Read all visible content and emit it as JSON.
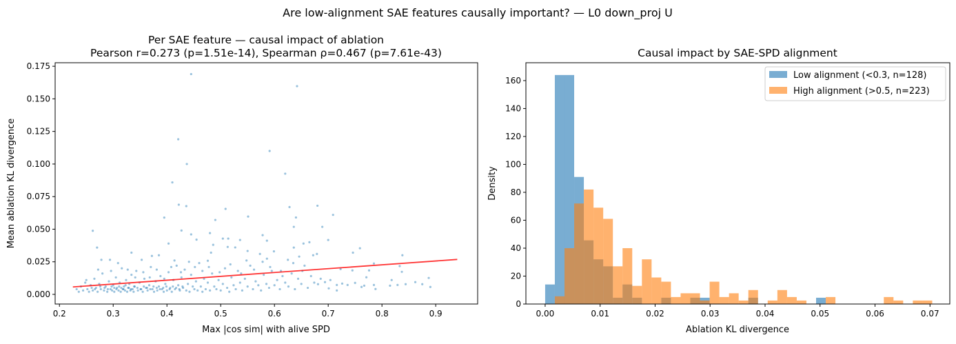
{
  "suptitle": "Are low-alignment SAE features causally important? — L0 down_proj U",
  "chart_data": [
    {
      "type": "scatter",
      "title_line1": "Per SAE feature — causal impact of ablation",
      "title_line2": "Pearson r=0.273 (p=1.51e-14), Spearman ρ=0.467 (p=7.61e-43)",
      "xlabel": "Max |cos sim| with alive SPD",
      "ylabel": "Mean ablation KL divergence",
      "xlim": [
        0.192,
        0.978
      ],
      "ylim": [
        -0.0074,
        0.1777
      ],
      "xticks": [
        "0.2",
        "0.3",
        "0.4",
        "0.5",
        "0.6",
        "0.7",
        "0.8",
        "0.9"
      ],
      "yticks": [
        "0.000",
        "0.025",
        "0.050",
        "0.075",
        "0.100",
        "0.125",
        "0.150",
        "0.175"
      ],
      "point_color": "#1f77b4",
      "fit_line": {
        "color": "#ff0000",
        "x": [
          0.225,
          0.94
        ],
        "y": [
          0.0057,
          0.0268
        ]
      },
      "points": [
        [
          0.445,
          0.169
        ],
        [
          0.642,
          0.1597
        ],
        [
          0.421,
          0.119
        ],
        [
          0.591,
          0.11
        ],
        [
          0.437,
          0.1
        ],
        [
          0.62,
          0.0926
        ],
        [
          0.41,
          0.0859
        ],
        [
          0.422,
          0.0688
        ],
        [
          0.436,
          0.0677
        ],
        [
          0.509,
          0.0656
        ],
        [
          0.628,
          0.067
        ],
        [
          0.68,
          0.068
        ],
        [
          0.709,
          0.061
        ],
        [
          0.64,
          0.059
        ],
        [
          0.395,
          0.0589
        ],
        [
          0.551,
          0.0597
        ],
        [
          0.49,
          0.0571
        ],
        [
          0.689,
          0.0518
        ],
        [
          0.636,
          0.0518
        ],
        [
          0.262,
          0.0488
        ],
        [
          0.427,
          0.049
        ],
        [
          0.48,
          0.047
        ],
        [
          0.578,
          0.0454
        ],
        [
          0.445,
          0.046
        ],
        [
          0.504,
          0.0428
        ],
        [
          0.514,
          0.0428
        ],
        [
          0.536,
          0.0417
        ],
        [
          0.586,
          0.0412
        ],
        [
          0.665,
          0.04
        ],
        [
          0.654,
          0.039
        ],
        [
          0.7,
          0.0417
        ],
        [
          0.455,
          0.042
        ],
        [
          0.403,
          0.039
        ],
        [
          0.27,
          0.0359
        ],
        [
          0.486,
          0.038
        ],
        [
          0.636,
          0.0359
        ],
        [
          0.759,
          0.0354
        ],
        [
          0.746,
          0.032
        ],
        [
          0.838,
          0.03
        ],
        [
          0.513,
          0.0364
        ],
        [
          0.527,
          0.036
        ],
        [
          0.599,
          0.033
        ],
        [
          0.55,
          0.0333
        ],
        [
          0.334,
          0.032
        ],
        [
          0.482,
          0.032
        ],
        [
          0.573,
          0.031
        ],
        [
          0.679,
          0.031
        ],
        [
          0.672,
          0.03
        ],
        [
          0.385,
          0.03
        ],
        [
          0.372,
          0.0295
        ],
        [
          0.586,
          0.0274
        ],
        [
          0.646,
          0.029
        ],
        [
          0.278,
          0.0265
        ],
        [
          0.294,
          0.0265
        ],
        [
          0.353,
          0.0265
        ],
        [
          0.476,
          0.0258
        ],
        [
          0.625,
          0.0265
        ],
        [
          0.785,
          0.0237
        ],
        [
          0.833,
          0.0217
        ],
        [
          0.837,
          0.0173
        ],
        [
          0.776,
          0.0184
        ],
        [
          0.745,
          0.0184
        ],
        [
          0.723,
          0.0194
        ],
        [
          0.887,
          0.0126
        ],
        [
          0.89,
          0.0057
        ],
        [
          0.875,
          0.0078
        ],
        [
          0.862,
          0.0094
        ],
        [
          0.844,
          0.0078
        ],
        [
          0.829,
          0.0072
        ],
        [
          0.815,
          0.0067
        ],
        [
          0.818,
          0.011
        ],
        [
          0.788,
          0.0041
        ],
        [
          0.785,
          0.0072
        ],
        [
          0.771,
          0.0131
        ],
        [
          0.767,
          0.0067
        ],
        [
          0.762,
          0.0057
        ],
        [
          0.75,
          0.0088
        ],
        [
          0.736,
          0.0072
        ],
        [
          0.726,
          0.0083
        ],
        [
          0.716,
          0.003
        ],
        [
          0.716,
          0.0072
        ],
        [
          0.704,
          0.011
        ],
        [
          0.701,
          0.0046
        ],
        [
          0.694,
          0.0094
        ],
        [
          0.686,
          0.012
        ],
        [
          0.681,
          0.0078
        ],
        [
          0.232,
          0.004
        ],
        [
          0.236,
          0.002
        ],
        [
          0.24,
          0.006
        ],
        [
          0.244,
          0.003
        ],
        [
          0.248,
          0.009
        ],
        [
          0.252,
          0.004
        ],
        [
          0.255,
          0.002
        ],
        [
          0.258,
          0.007
        ],
        [
          0.262,
          0.003
        ],
        [
          0.265,
          0.012
        ],
        [
          0.268,
          0.005
        ],
        [
          0.271,
          0.002
        ],
        [
          0.274,
          0.008
        ],
        [
          0.277,
          0.004
        ],
        [
          0.28,
          0.016
        ],
        [
          0.283,
          0.003
        ],
        [
          0.286,
          0.006
        ],
        [
          0.289,
          0.002
        ],
        [
          0.292,
          0.01
        ],
        [
          0.295,
          0.004
        ],
        [
          0.298,
          0.003
        ],
        [
          0.3,
          0.007
        ],
        [
          0.302,
          0.002
        ],
        [
          0.305,
          0.013
        ],
        [
          0.307,
          0.005
        ],
        [
          0.31,
          0.003
        ],
        [
          0.312,
          0.009
        ],
        [
          0.314,
          0.002
        ],
        [
          0.316,
          0.02
        ],
        [
          0.318,
          0.004
        ],
        [
          0.32,
          0.006
        ],
        [
          0.322,
          0.003
        ],
        [
          0.324,
          0.011
        ],
        [
          0.326,
          0.002
        ],
        [
          0.328,
          0.005
        ],
        [
          0.33,
          0.008
        ],
        [
          0.332,
          0.003
        ],
        [
          0.334,
          0.015
        ],
        [
          0.336,
          0.004
        ],
        [
          0.338,
          0.002
        ],
        [
          0.34,
          0.006
        ],
        [
          0.343,
          0.018
        ],
        [
          0.346,
          0.003
        ],
        [
          0.349,
          0.009
        ],
        [
          0.352,
          0.004
        ],
        [
          0.355,
          0.002
        ],
        [
          0.358,
          0.012
        ],
        [
          0.361,
          0.005
        ],
        [
          0.364,
          0.003
        ],
        [
          0.367,
          0.007
        ],
        [
          0.37,
          0.021
        ],
        [
          0.373,
          0.004
        ],
        [
          0.376,
          0.002
        ],
        [
          0.379,
          0.01
        ],
        [
          0.382,
          0.003
        ],
        [
          0.385,
          0.006
        ],
        [
          0.388,
          0.014
        ],
        [
          0.391,
          0.004
        ],
        [
          0.394,
          0.002
        ],
        [
          0.397,
          0.008
        ],
        [
          0.4,
          0.003
        ],
        [
          0.403,
          0.017
        ],
        [
          0.406,
          0.005
        ],
        [
          0.409,
          0.002
        ],
        [
          0.412,
          0.011
        ],
        [
          0.415,
          0.004
        ],
        [
          0.418,
          0.022
        ],
        [
          0.421,
          0.007
        ],
        [
          0.424,
          0.003
        ],
        [
          0.427,
          0.013
        ],
        [
          0.43,
          0.005
        ],
        [
          0.433,
          0.019
        ],
        [
          0.436,
          0.003
        ],
        [
          0.439,
          0.008
        ],
        [
          0.442,
          0.002
        ],
        [
          0.445,
          0.015
        ],
        [
          0.448,
          0.006
        ],
        [
          0.451,
          0.004
        ],
        [
          0.454,
          0.01
        ],
        [
          0.457,
          0.003
        ],
        [
          0.46,
          0.024
        ],
        [
          0.463,
          0.006
        ],
        [
          0.466,
          0.002
        ],
        [
          0.469,
          0.012
        ],
        [
          0.472,
          0.004
        ],
        [
          0.476,
          0.009
        ],
        [
          0.48,
          0.003
        ],
        [
          0.484,
          0.016
        ],
        [
          0.488,
          0.006
        ],
        [
          0.492,
          0.004
        ],
        [
          0.496,
          0.011
        ],
        [
          0.5,
          0.003
        ],
        [
          0.504,
          0.008
        ],
        [
          0.508,
          0.02
        ],
        [
          0.512,
          0.005
        ],
        [
          0.516,
          0.002
        ],
        [
          0.52,
          0.013
        ],
        [
          0.524,
          0.007
        ],
        [
          0.528,
          0.004
        ],
        [
          0.532,
          0.018
        ],
        [
          0.536,
          0.009
        ],
        [
          0.54,
          0.003
        ],
        [
          0.545,
          0.012
        ],
        [
          0.55,
          0.006
        ],
        [
          0.555,
          0.022
        ],
        [
          0.56,
          0.004
        ],
        [
          0.565,
          0.01
        ],
        [
          0.57,
          0.007
        ],
        [
          0.575,
          0.003
        ],
        [
          0.58,
          0.015
        ],
        [
          0.585,
          0.008
        ],
        [
          0.59,
          0.005
        ],
        [
          0.595,
          0.018
        ],
        [
          0.6,
          0.007
        ],
        [
          0.605,
          0.011
        ],
        [
          0.61,
          0.004
        ],
        [
          0.615,
          0.014
        ],
        [
          0.62,
          0.009
        ],
        [
          0.626,
          0.006
        ],
        [
          0.632,
          0.016
        ],
        [
          0.638,
          0.004
        ],
        [
          0.644,
          0.012
        ],
        [
          0.65,
          0.008
        ],
        [
          0.656,
          0.022
        ],
        [
          0.662,
          0.005
        ],
        [
          0.668,
          0.014
        ],
        [
          0.674,
          0.009
        ],
        [
          0.25,
          0.011
        ],
        [
          0.272,
          0.019
        ],
        [
          0.296,
          0.018
        ],
        [
          0.309,
          0.024
        ],
        [
          0.327,
          0.019
        ],
        [
          0.341,
          0.013
        ],
        [
          0.356,
          0.017
        ],
        [
          0.368,
          0.013
        ],
        [
          0.381,
          0.019
        ],
        [
          0.395,
          0.012
        ],
        [
          0.408,
          0.021
        ],
        [
          0.414,
          0.026
        ],
        [
          0.426,
          0.017
        ],
        [
          0.441,
          0.025
        ],
        [
          0.452,
          0.021
        ],
        [
          0.466,
          0.018
        ],
        [
          0.478,
          0.021
        ],
        [
          0.498,
          0.017
        ],
        [
          0.518,
          0.023
        ],
        [
          0.538,
          0.016
        ],
        [
          0.548,
          0.026
        ],
        [
          0.562,
          0.019
        ],
        [
          0.578,
          0.025
        ],
        [
          0.592,
          0.021
        ],
        [
          0.612,
          0.018
        ],
        [
          0.635,
          0.024
        ],
        [
          0.652,
          0.018
        ],
        [
          0.302,
          0.005
        ],
        [
          0.306,
          0.004
        ],
        [
          0.311,
          0.006
        ],
        [
          0.315,
          0.005
        ],
        [
          0.319,
          0.004
        ],
        [
          0.323,
          0.007
        ],
        [
          0.329,
          0.005
        ],
        [
          0.333,
          0.004
        ],
        [
          0.339,
          0.006
        ],
        [
          0.345,
          0.005
        ],
        [
          0.351,
          0.004
        ],
        [
          0.357,
          0.006
        ],
        [
          0.363,
          0.005
        ],
        [
          0.369,
          0.004
        ],
        [
          0.375,
          0.006
        ],
        [
          0.381,
          0.005
        ],
        [
          0.387,
          0.004
        ],
        [
          0.393,
          0.005
        ],
        [
          0.399,
          0.006
        ],
        [
          0.405,
          0.004
        ],
        [
          0.411,
          0.006
        ],
        [
          0.417,
          0.005
        ],
        [
          0.423,
          0.004
        ],
        [
          0.429,
          0.006
        ],
        [
          0.26,
          0.005
        ],
        [
          0.266,
          0.004
        ],
        [
          0.276,
          0.006
        ],
        [
          0.284,
          0.005
        ],
        [
          0.29,
          0.004
        ],
        [
          0.297,
          0.006
        ]
      ]
    },
    {
      "type": "bar",
      "subtype": "histogram",
      "title": "Causal impact by SAE-SPD alignment",
      "xlabel": "Ablation KL divergence",
      "ylabel": "Density",
      "xlim": [
        -0.0035,
        0.0736
      ],
      "ylim": [
        0,
        172.8
      ],
      "xticks": [
        "0.00",
        "0.01",
        "0.02",
        "0.03",
        "0.04",
        "0.05",
        "0.06",
        "0.07"
      ],
      "yticks": [
        "0",
        "20",
        "40",
        "60",
        "80",
        "100",
        "120",
        "140",
        "160"
      ],
      "bin_width": 0.00176,
      "legend_position": "top-right",
      "series": [
        {
          "name": "Low alignment (<0.3, n=128)",
          "color": "#1f77b4",
          "densities": [
            14,
            164,
            164,
            91,
            45.6,
            32,
            27,
            4.5,
            14,
            4.5,
            0,
            0,
            4.5,
            0,
            0,
            4.5,
            4.5,
            0,
            0,
            0,
            0,
            4.5,
            0,
            0,
            0,
            0,
            0,
            0,
            4.5
          ]
        },
        {
          "name": "High alignment (>0.5, n=223)",
          "color": "#ff7f0e",
          "densities": [
            0,
            5.5,
            40,
            72,
            82,
            69,
            61,
            27,
            40,
            13,
            32,
            19,
            16,
            5,
            7.7,
            7.7,
            2.5,
            16,
            5,
            7.7,
            2.5,
            10,
            0,
            2.5,
            10,
            5,
            2.5,
            0,
            0,
            5,
            0,
            0,
            0,
            0,
            0,
            5,
            2.5,
            0,
            2.5,
            2.5
          ]
        }
      ]
    }
  ]
}
